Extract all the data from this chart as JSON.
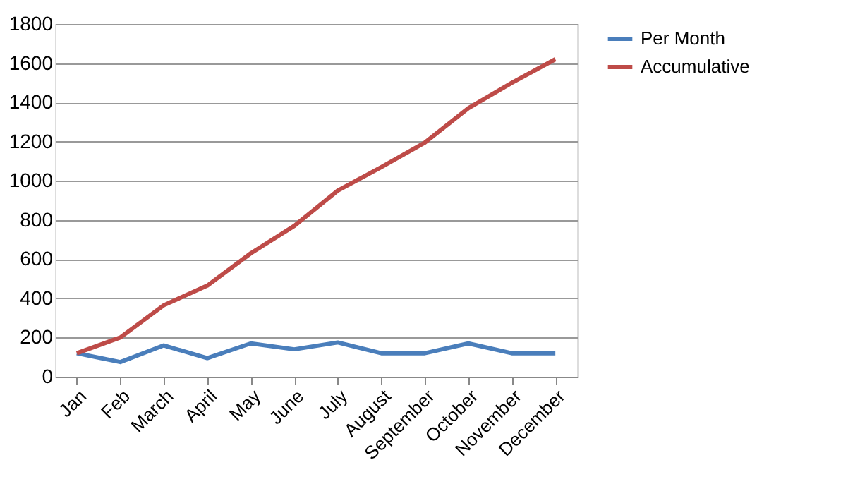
{
  "chart_data": {
    "type": "line",
    "categories": [
      "Jan",
      "Feb",
      "March",
      "April",
      "May",
      "June",
      "July",
      "August",
      "September",
      "October",
      "November",
      "December"
    ],
    "series": [
      {
        "name": "Per Month",
        "color": "#4a7ebb",
        "values": [
          120,
          75,
          160,
          95,
          170,
          140,
          175,
          120,
          120,
          170,
          120,
          120
        ]
      },
      {
        "name": "Accumulative",
        "color": "#be4b48",
        "values": [
          120,
          200,
          365,
          465,
          630,
          770,
          950,
          1070,
          1195,
          1370,
          1500,
          1620
        ]
      }
    ],
    "ylim": [
      0,
      1800
    ],
    "yticks": [
      0,
      200,
      400,
      600,
      800,
      1000,
      1200,
      1400,
      1600,
      1800
    ],
    "grid": "y",
    "legend": "right",
    "marker": "none",
    "line_style": "solid"
  }
}
